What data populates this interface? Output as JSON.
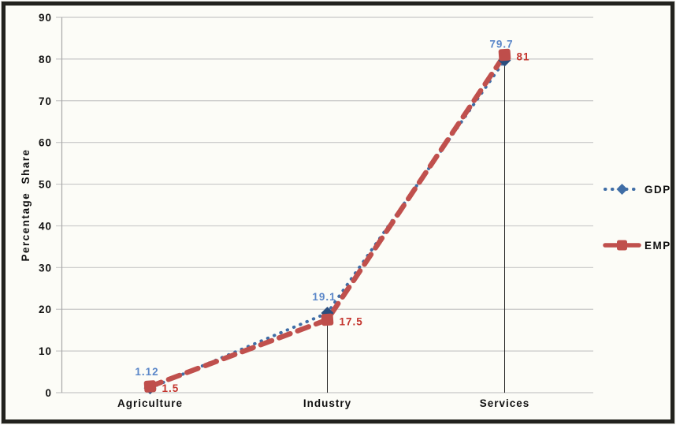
{
  "chart_data": {
    "type": "line",
    "title": "",
    "xlabel": "",
    "ylabel": "Percentage Share",
    "categories": [
      "Agriculture",
      "Industry",
      "Services"
    ],
    "series": [
      {
        "name": "GDP",
        "values": [
          1.12,
          19.1,
          79.7
        ],
        "point_labels": [
          "1.12",
          "19.1",
          "79.7"
        ],
        "line_color": "#3f6da6",
        "marker_color": "#2a4e7e",
        "label_color": "#5b87c9",
        "line_style": "dotted",
        "marker": "diamond"
      },
      {
        "name": "EMP",
        "values": [
          1.5,
          17.5,
          81
        ],
        "point_labels": [
          "1.5",
          "17.5",
          "81"
        ],
        "line_color": "#c0504d",
        "marker_color": "#bf4e4b",
        "label_color": "#c4352e",
        "line_style": "dashed",
        "marker": "square"
      }
    ],
    "ylim": [
      0,
      90
    ],
    "yticks": [
      0,
      10,
      20,
      30,
      40,
      50,
      60,
      70,
      80,
      90
    ],
    "grid": "horizontal",
    "legend_position": "right-outside",
    "drop_lines": true
  },
  "colors": {
    "background": "#fcfcf7",
    "frame_border": "#22221e",
    "gridline": "#c7c7c7",
    "axis_line": "#a8a8a8",
    "drop_line": "#222222",
    "text": "#111111"
  }
}
